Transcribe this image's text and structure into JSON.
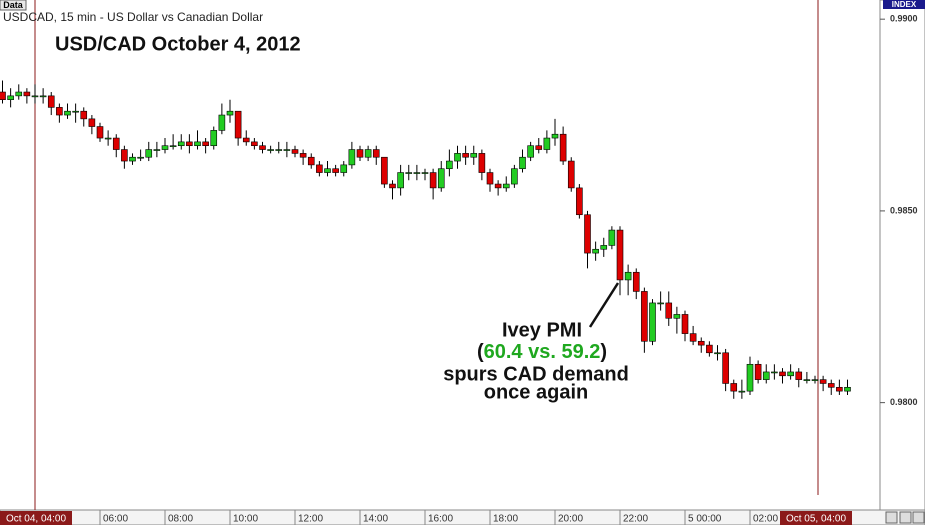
{
  "chart_data": {
    "type": "candlestick",
    "header": "USDCAD, 15 min - US Dollar vs Canadian Dollar",
    "data_tag": "Data",
    "axis_tag": "INDEX",
    "title": "USD/CAD October 4, 2012",
    "annotation": {
      "line1": "Ivey PMI",
      "open_paren": "(",
      "highlight": "60.4 vs. 59.2",
      "close_paren": ")",
      "line3": "spurs CAD demand",
      "line4": "once again"
    },
    "up_color": "#22cc22",
    "down_color": "#dd0000",
    "highlight_color": "#1fa81f",
    "ylim": [
      0.9772,
      0.9905
    ],
    "yticks": [
      {
        "value": 0.98,
        "label": "0.9800"
      },
      {
        "value": 0.985,
        "label": "0.9850"
      },
      {
        "value": 0.99,
        "label": "0.9900"
      }
    ],
    "categories": [
      null,
      null,
      null,
      null,
      "Oct 04, 04:00",
      null,
      null,
      null,
      null,
      null,
      null,
      null,
      "06:00",
      null,
      null,
      null,
      null,
      null,
      null,
      null,
      "08:00",
      null,
      null,
      null,
      null,
      null,
      null,
      null,
      "10:00",
      null,
      null,
      null,
      null,
      null,
      null,
      null,
      "12:00",
      null,
      null,
      null,
      null,
      null,
      null,
      null,
      "14:00",
      null,
      null,
      null,
      null,
      null,
      null,
      null,
      "16:00",
      null,
      null,
      null,
      null,
      null,
      null,
      null,
      "18:00",
      null,
      null,
      null,
      null,
      null,
      null,
      null,
      "20:00",
      null,
      null,
      null,
      null,
      null,
      null,
      null,
      "22:00",
      null,
      null,
      null,
      null,
      null,
      null,
      null,
      "5 00:00",
      null,
      null,
      null,
      null,
      null,
      null,
      null,
      "02:00",
      null,
      null,
      null,
      null,
      null,
      null,
      null,
      "Oct 05, 04:00",
      null,
      null,
      null,
      null
    ],
    "open": [
      0.9881,
      0.9879,
      0.988,
      0.9881,
      0.988,
      0.988,
      0.988,
      0.9877,
      0.9875,
      0.9876,
      0.9876,
      0.9874,
      0.9872,
      0.9869,
      0.9869,
      0.9866,
      0.9863,
      0.9864,
      0.9864,
      0.9866,
      0.9866,
      0.9867,
      0.9867,
      0.9868,
      0.9867,
      0.9868,
      0.9867,
      0.9871,
      0.9875,
      0.9876,
      0.9869,
      0.9868,
      0.9867,
      0.9866,
      0.9866,
      0.9866,
      0.9866,
      0.9865,
      0.9864,
      0.9862,
      0.986,
      0.9861,
      0.986,
      0.9862,
      0.9866,
      0.9864,
      0.9866,
      0.9864,
      0.9857,
      0.9856,
      0.986,
      0.986,
      0.986,
      0.986,
      0.9856,
      0.9861,
      0.9863,
      0.9865,
      0.9864,
      0.9865,
      0.986,
      0.9857,
      0.9856,
      0.9857,
      0.9861,
      0.9864,
      0.9867,
      0.9866,
      0.9869,
      0.987,
      0.9863,
      0.9856,
      0.9849,
      0.9839,
      0.984,
      0.9841,
      0.9845,
      0.9832,
      0.9834,
      0.9829,
      0.9816,
      0.9826,
      0.9826,
      0.9822,
      0.9823,
      0.9818,
      0.9816,
      0.9815,
      0.9813,
      0.9813,
      0.9805,
      0.9803,
      0.9803,
      0.981,
      0.9806,
      0.9808,
      0.9808,
      0.9807,
      0.9808,
      0.9806,
      0.9806,
      0.9806,
      0.9805,
      0.9804,
      0.9803
    ],
    "high": [
      0.9884,
      0.9882,
      0.9883,
      0.9882,
      0.9883,
      0.9882,
      0.9881,
      0.9878,
      0.9878,
      0.9878,
      0.9877,
      0.9875,
      0.9873,
      0.9871,
      0.987,
      0.9867,
      0.9865,
      0.9866,
      0.9868,
      0.9868,
      0.9869,
      0.987,
      0.987,
      0.987,
      0.9871,
      0.9869,
      0.9872,
      0.9878,
      0.9879,
      0.9876,
      0.9871,
      0.9869,
      0.9868,
      0.9867,
      0.9868,
      0.9868,
      0.9867,
      0.9866,
      0.9865,
      0.9863,
      0.9863,
      0.9862,
      0.9863,
      0.9868,
      0.9867,
      0.9867,
      0.9867,
      0.9864,
      0.9858,
      0.9862,
      0.9862,
      0.9862,
      0.9861,
      0.9861,
      0.9863,
      0.9866,
      0.9867,
      0.9867,
      0.9867,
      0.9866,
      0.9861,
      0.9858,
      0.9859,
      0.9862,
      0.9866,
      0.9868,
      0.9869,
      0.9871,
      0.9874,
      0.9872,
      0.9864,
      0.9857,
      0.985,
      0.9842,
      0.9843,
      0.9846,
      0.9846,
      0.9836,
      0.9835,
      0.983,
      0.9827,
      0.9829,
      0.9829,
      0.9825,
      0.9824,
      0.982,
      0.9817,
      0.9816,
      0.9815,
      0.9814,
      0.9806,
      0.9806,
      0.9812,
      0.9811,
      0.981,
      0.981,
      0.9809,
      0.981,
      0.9809,
      0.9808,
      0.9807,
      0.9807,
      0.9806,
      0.9806,
      0.9806
    ],
    "low": [
      0.9878,
      0.9877,
      0.9879,
      0.9878,
      0.9878,
      0.9878,
      0.9875,
      0.9873,
      0.9874,
      0.9873,
      0.9872,
      0.987,
      0.9868,
      0.9867,
      0.9864,
      0.9861,
      0.9862,
      0.9863,
      0.9863,
      0.9864,
      0.9865,
      0.9866,
      0.9866,
      0.9865,
      0.9866,
      0.9865,
      0.9866,
      0.987,
      0.9873,
      0.9867,
      0.9867,
      0.9866,
      0.9865,
      0.9865,
      0.9865,
      0.9864,
      0.9864,
      0.9862,
      0.9861,
      0.9859,
      0.9859,
      0.9859,
      0.9859,
      0.9861,
      0.9863,
      0.9863,
      0.9862,
      0.9856,
      0.9853,
      0.9854,
      0.9858,
      0.9858,
      0.9858,
      0.9853,
      0.9855,
      0.9859,
      0.9861,
      0.9862,
      0.9862,
      0.9858,
      0.9855,
      0.9854,
      0.9855,
      0.9856,
      0.986,
      0.9863,
      0.9865,
      0.9865,
      0.9867,
      0.9862,
      0.9855,
      0.9848,
      0.9835,
      0.9837,
      0.9838,
      0.984,
      0.9828,
      0.9828,
      0.9827,
      0.9813,
      0.9815,
      0.9824,
      0.982,
      0.9818,
      0.9816,
      0.9815,
      0.9813,
      0.9812,
      0.9811,
      0.9803,
      0.9801,
      0.9801,
      0.9802,
      0.9805,
      0.9805,
      0.9806,
      0.9805,
      0.9806,
      0.9804,
      0.9805,
      0.9805,
      0.9803,
      0.9802,
      0.9802,
      0.9802
    ],
    "close": [
      0.9879,
      0.988,
      0.9881,
      0.988,
      0.988,
      0.988,
      0.9877,
      0.9875,
      0.9876,
      0.9876,
      0.9874,
      0.9872,
      0.9869,
      0.9869,
      0.9866,
      0.9863,
      0.9864,
      0.9864,
      0.9866,
      0.9866,
      0.9867,
      0.9867,
      0.9868,
      0.9867,
      0.9868,
      0.9867,
      0.9871,
      0.9875,
      0.9876,
      0.9869,
      0.9868,
      0.9867,
      0.9866,
      0.9866,
      0.9866,
      0.9866,
      0.9865,
      0.9864,
      0.9862,
      0.986,
      0.9861,
      0.986,
      0.9862,
      0.9866,
      0.9864,
      0.9866,
      0.9864,
      0.9857,
      0.9856,
      0.986,
      0.986,
      0.986,
      0.986,
      0.9856,
      0.9861,
      0.9863,
      0.9865,
      0.9864,
      0.9865,
      0.986,
      0.9857,
      0.9856,
      0.9857,
      0.9861,
      0.9864,
      0.9867,
      0.9866,
      0.9869,
      0.987,
      0.9863,
      0.9856,
      0.9849,
      0.9839,
      0.984,
      0.9841,
      0.9845,
      0.9832,
      0.9834,
      0.9829,
      0.9816,
      0.9826,
      0.9826,
      0.9822,
      0.9823,
      0.9818,
      0.9816,
      0.9815,
      0.9813,
      0.9813,
      0.9805,
      0.9803,
      0.9803,
      0.981,
      0.9806,
      0.9808,
      0.9808,
      0.9807,
      0.9808,
      0.9806,
      0.9806,
      0.9806,
      0.9805,
      0.9804,
      0.9803,
      0.9804
    ]
  }
}
